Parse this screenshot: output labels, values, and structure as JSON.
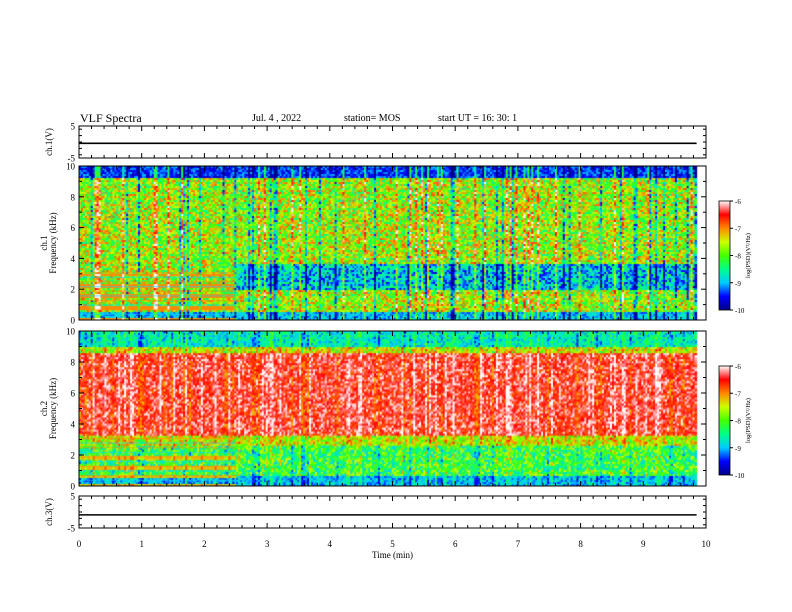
{
  "header": {
    "title": "VLF Spectra",
    "date": "Jul. 4 , 2022",
    "station": "station= MOS",
    "start": "start UT =   16: 30: 1"
  },
  "chart_data": [
    {
      "type": "line",
      "panel": "ch.1 waveform",
      "ylabel": "ch.1(V)",
      "ylim": [
        -5,
        5
      ],
      "yticks": [
        "5",
        "-5"
      ],
      "xlim": [
        0,
        10
      ],
      "series": [
        {
          "x": [
            0,
            9.85
          ],
          "y": [
            -0.4,
            -0.4
          ]
        }
      ]
    },
    {
      "type": "heatmap",
      "panel": "ch.1 spectrogram",
      "ylabel": "ch.1 Frequency (kHz)",
      "ylabel_lines": [
        "ch.1",
        "Frequency (kHz)"
      ],
      "ylim": [
        0,
        10
      ],
      "yticks": [
        "0",
        "2",
        "4",
        "6",
        "8",
        "10"
      ],
      "xlim": [
        0,
        10
      ],
      "data_end_min": 9.85,
      "colorbar": {
        "label": "log(PSD)(V²/Hz)",
        "range": [
          -10,
          -6
        ],
        "ticks": [
          "-6",
          "-7",
          "-8",
          "-9",
          "-10"
        ]
      },
      "colormap": [
        "#000088",
        "#0000ff",
        "#00ccff",
        "#00ff88",
        "#44ff00",
        "#ccff00",
        "#ff8800",
        "#ff0000",
        "#ffffff"
      ]
    },
    {
      "type": "heatmap",
      "panel": "ch.2 spectrogram",
      "ylabel": "ch.2 Frequency (kHz)",
      "ylabel_lines": [
        "ch.2",
        "Frequency (kHz)"
      ],
      "ylim": [
        0,
        10
      ],
      "yticks": [
        "0",
        "2",
        "4",
        "6",
        "8",
        "10"
      ],
      "xlim": [
        0,
        10
      ],
      "data_end_min": 9.85,
      "colorbar": {
        "label": "log(PSD)(V²/Hz)",
        "range": [
          -10,
          -6
        ],
        "ticks": [
          "-6",
          "-7",
          "-8",
          "-9",
          "-10"
        ]
      },
      "colormap": [
        "#000088",
        "#0000ff",
        "#00ccff",
        "#00ff88",
        "#44ff00",
        "#ccff00",
        "#ff8800",
        "#ff0000",
        "#ffffff"
      ]
    },
    {
      "type": "line",
      "panel": "ch.3 waveform",
      "ylabel": "ch.3(V)",
      "ylim": [
        -5,
        5
      ],
      "yticks": [
        "5",
        "-5"
      ],
      "xlim": [
        0,
        10
      ],
      "xlabel": "Time (min)",
      "xticks": [
        "0",
        "1",
        "2",
        "3",
        "4",
        "5",
        "6",
        "7",
        "8",
        "9",
        "10"
      ],
      "series": [
        {
          "x": [
            0,
            9.85
          ],
          "y": [
            -0.9,
            -0.9
          ]
        }
      ]
    }
  ]
}
